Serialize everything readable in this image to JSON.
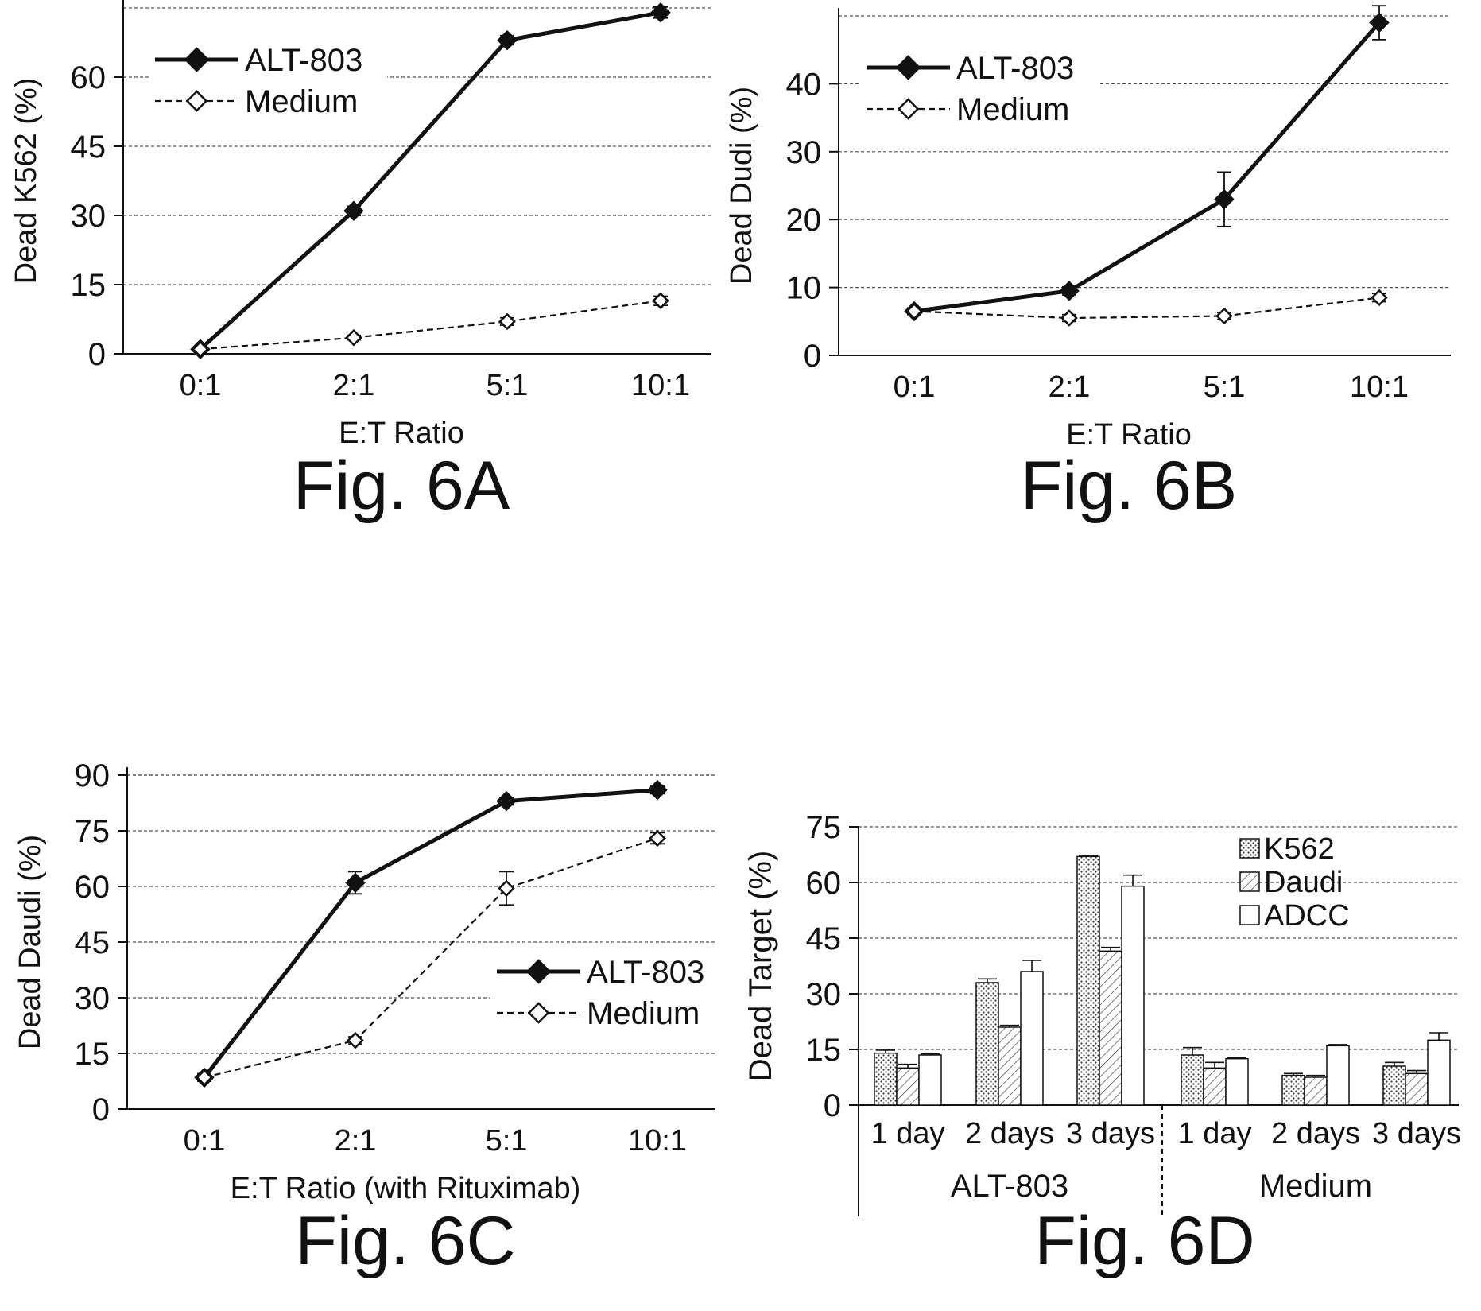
{
  "chart_data": [
    {
      "type": "line",
      "figure_label": "Fig. 6A",
      "xlabel": "E:T Ratio",
      "ylabel": "Dead K562 (%)",
      "categories": [
        "0:1",
        "2:1",
        "5:1",
        "10:1"
      ],
      "ylim": [
        0,
        75
      ],
      "yticks": [
        0,
        15,
        30,
        45,
        60
      ],
      "grid": true,
      "legend_position": "top-left",
      "series": [
        {
          "name": "ALT-803",
          "values": [
            1,
            31,
            68,
            74
          ],
          "errors": [
            0.5,
            1,
            1,
            1.2
          ],
          "style": "solid",
          "marker": "filled-diamond"
        },
        {
          "name": "Medium",
          "values": [
            1,
            3.5,
            7,
            11.5
          ],
          "errors": [
            0.3,
            0.5,
            0.8,
            1
          ],
          "style": "dashed",
          "marker": "open-diamond"
        }
      ]
    },
    {
      "type": "line",
      "figure_label": "Fig. 6B",
      "xlabel": "E:T Ratio",
      "ylabel": "Dead Dudi (%)",
      "categories": [
        "0:1",
        "2:1",
        "5:1",
        "10:1"
      ],
      "ylim": [
        0,
        50
      ],
      "yticks": [
        0,
        10,
        20,
        30,
        40
      ],
      "grid": true,
      "legend_position": "top-left",
      "series": [
        {
          "name": "ALT-803",
          "values": [
            6.5,
            9.5,
            23,
            49
          ],
          "errors": [
            0.5,
            0.6,
            4,
            2.5
          ],
          "style": "solid",
          "marker": "filled-diamond"
        },
        {
          "name": "Medium",
          "values": [
            6.5,
            5.5,
            5.8,
            8.5
          ],
          "errors": [
            0.5,
            0.5,
            0.5,
            0.6
          ],
          "style": "dashed",
          "marker": "open-diamond"
        }
      ]
    },
    {
      "type": "line",
      "figure_label": "Fig. 6C",
      "xlabel": "E:T Ratio (with Rituximab)",
      "ylabel": "Dead Daudi (%)",
      "categories": [
        "0:1",
        "2:1",
        "5:1",
        "10:1"
      ],
      "ylim": [
        0,
        90
      ],
      "yticks": [
        0,
        15,
        30,
        45,
        60,
        75,
        90
      ],
      "grid": true,
      "legend_position": "center-right",
      "series": [
        {
          "name": "ALT-803",
          "values": [
            8.5,
            61,
            83,
            86
          ],
          "errors": [
            1,
            3,
            1,
            1
          ],
          "style": "solid",
          "marker": "filled-diamond"
        },
        {
          "name": "Medium",
          "values": [
            8.5,
            18.5,
            59.5,
            73
          ],
          "errors": [
            1,
            1,
            4.5,
            1.5
          ],
          "style": "dashed",
          "marker": "open-diamond"
        }
      ]
    },
    {
      "type": "bar",
      "figure_label": "Fig. 6D",
      "ylabel": "Dead Target (%)",
      "ylim": [
        0,
        75
      ],
      "yticks": [
        0,
        15,
        30,
        45,
        60,
        75
      ],
      "grid": true,
      "legend_position": "top-right",
      "categories": [
        "1 day",
        "2 days",
        "3 days",
        "1 day",
        "2 days",
        "3 days"
      ],
      "groups": [
        "ALT-803",
        "Medium"
      ],
      "series": [
        {
          "name": "K562",
          "pattern": "dots",
          "values": [
            14,
            33,
            67,
            13.5,
            8,
            10.5
          ],
          "errors": [
            0.8,
            1,
            0.3,
            2,
            0.5,
            1
          ]
        },
        {
          "name": "Daudi",
          "pattern": "hatch",
          "values": [
            10,
            21,
            41.5,
            10,
            7.5,
            8.5
          ],
          "errors": [
            1,
            0.5,
            1,
            1.5,
            0.5,
            0.8
          ]
        },
        {
          "name": "ADCC",
          "pattern": "open",
          "values": [
            13.5,
            36,
            59,
            12.5,
            16,
            17.5
          ],
          "errors": [
            0.3,
            3,
            3,
            0.3,
            0.3,
            2
          ]
        }
      ]
    }
  ]
}
